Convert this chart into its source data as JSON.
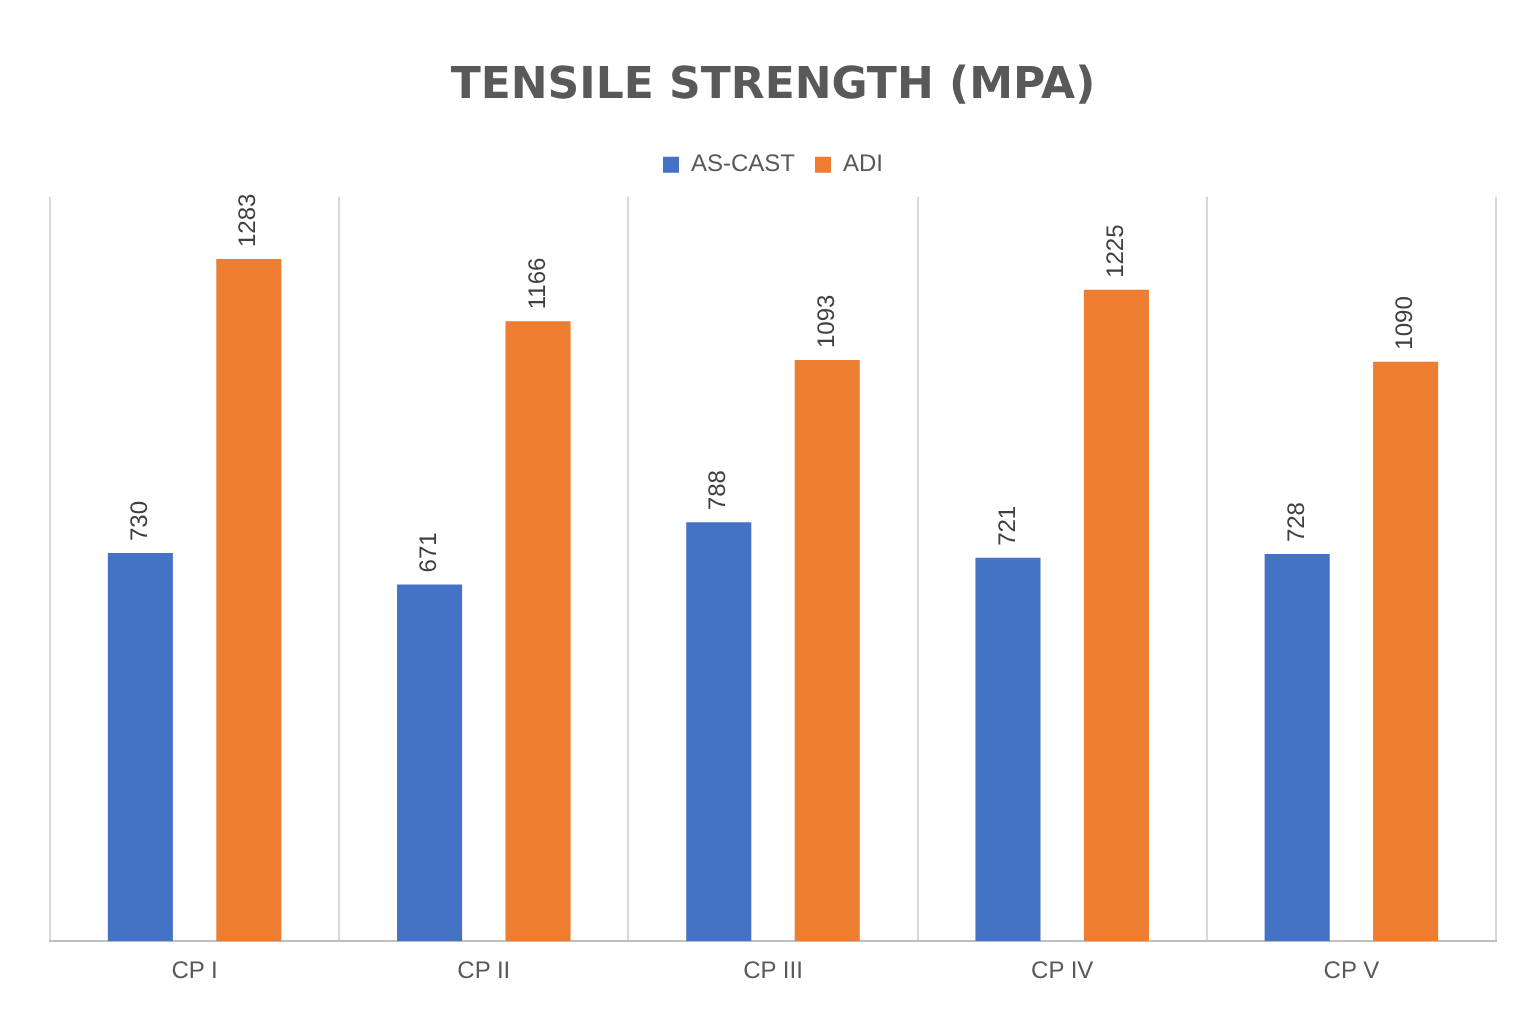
{
  "chart_data": {
    "type": "bar",
    "title": "TENSILE STRENGTH (MPA)",
    "categories": [
      "CP I",
      "CP II",
      "CP III",
      "CP IV",
      "CP V"
    ],
    "series": [
      {
        "name": "AS-CAST",
        "color": "#4472c4",
        "values": [
          730,
          671,
          788,
          721,
          728
        ]
      },
      {
        "name": "ADI",
        "color": "#ed7d31",
        "values": [
          1283,
          1166,
          1093,
          1225,
          1090
        ]
      }
    ],
    "data_labels": true,
    "grid": "x",
    "legend": "top"
  }
}
